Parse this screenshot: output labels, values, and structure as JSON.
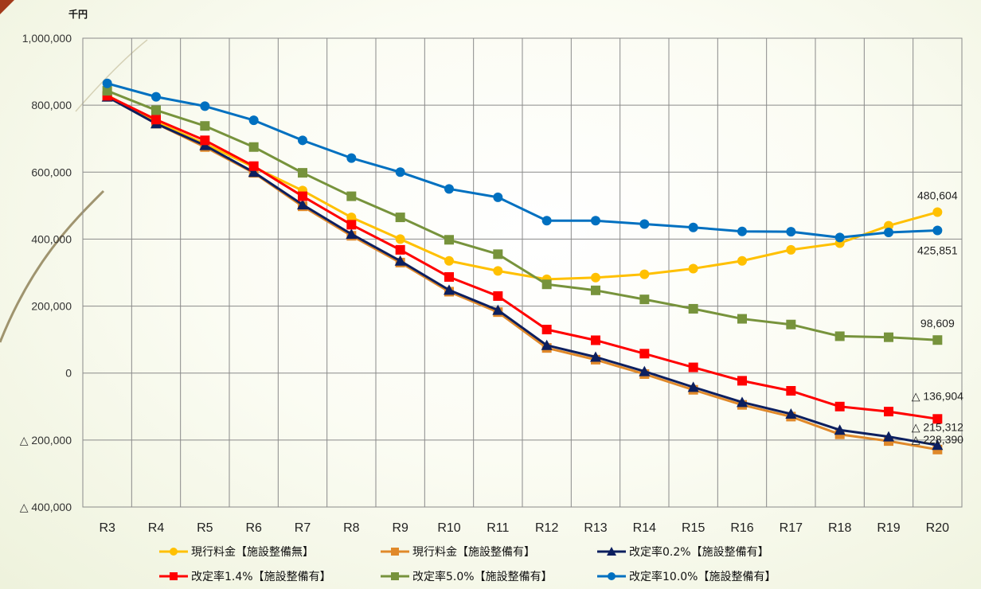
{
  "chart_data": {
    "type": "line",
    "unit_label": "千円",
    "categories": [
      "R3",
      "R4",
      "R5",
      "R6",
      "R7",
      "R8",
      "R9",
      "R10",
      "R11",
      "R12",
      "R13",
      "R14",
      "R15",
      "R16",
      "R17",
      "R18",
      "R19",
      "R20"
    ],
    "ylim": [
      -400000,
      1000000
    ],
    "yticks": [
      1000000,
      800000,
      600000,
      400000,
      200000,
      0,
      -200000,
      -400000
    ],
    "ytick_labels": [
      "1,000,000",
      "800,000",
      "600,000",
      "400,000",
      "200,000",
      "0",
      "△ 200,000",
      "△ 400,000"
    ],
    "grid": true,
    "legend_position": "bottom",
    "series": [
      {
        "name": "現行料金【施設整備無】",
        "color": "#ffc000",
        "marker": "circle",
        "values": [
          830000,
          750000,
          685000,
          615000,
          545000,
          465000,
          400000,
          335000,
          305000,
          280000,
          285000,
          295000,
          312000,
          335000,
          368000,
          388000,
          440000,
          480604
        ]
      },
      {
        "name": "現行料金【施設整備有】",
        "color": "#e0892a",
        "marker": "square",
        "values": [
          825000,
          745000,
          675000,
          598000,
          498000,
          410000,
          330000,
          243000,
          182000,
          75000,
          40000,
          -3000,
          -50000,
          -95000,
          -130000,
          -183000,
          -203000,
          -228390
        ]
      },
      {
        "name": "改定率0.2%【施設整備有】",
        "color": "#0c1f5f",
        "marker": "triangle",
        "values": [
          825000,
          745000,
          680000,
          600000,
          503000,
          415000,
          335000,
          248000,
          188000,
          83000,
          48000,
          5000,
          -42000,
          -87000,
          -122000,
          -170000,
          -190000,
          -215312
        ]
      },
      {
        "name": "改定率1.4%【施設整備有】",
        "color": "#ff0000",
        "marker": "square",
        "values": [
          828000,
          757000,
          695000,
          618000,
          528000,
          443000,
          368000,
          287000,
          230000,
          130000,
          98000,
          58000,
          17000,
          -23000,
          -53000,
          -100000,
          -115000,
          -136904
        ]
      },
      {
        "name": "改定率5.0%【施設整備有】",
        "color": "#77933c",
        "marker": "square",
        "values": [
          843000,
          785000,
          738000,
          675000,
          598000,
          528000,
          465000,
          398000,
          355000,
          265000,
          247000,
          220000,
          192000,
          162000,
          145000,
          110000,
          107000,
          98609
        ]
      },
      {
        "name": "改定率10.0%【施設整備有】",
        "color": "#0070c0",
        "marker": "circle",
        "values": [
          865000,
          825000,
          797000,
          755000,
          695000,
          642000,
          600000,
          550000,
          525000,
          455000,
          455000,
          445000,
          435000,
          423000,
          422000,
          405000,
          420000,
          425851
        ]
      }
    ],
    "data_labels": [
      {
        "series": 0,
        "index": 17,
        "text": "480,604"
      },
      {
        "series": 5,
        "index": 17,
        "text": "425,851"
      },
      {
        "series": 4,
        "index": 17,
        "text": "98,609"
      },
      {
        "series": 3,
        "index": 17,
        "text": "△ 136,904"
      },
      {
        "series": 2,
        "index": 17,
        "text": "△ 215,312"
      },
      {
        "series": 1,
        "index": 17,
        "text": "△ 228,390"
      }
    ]
  }
}
